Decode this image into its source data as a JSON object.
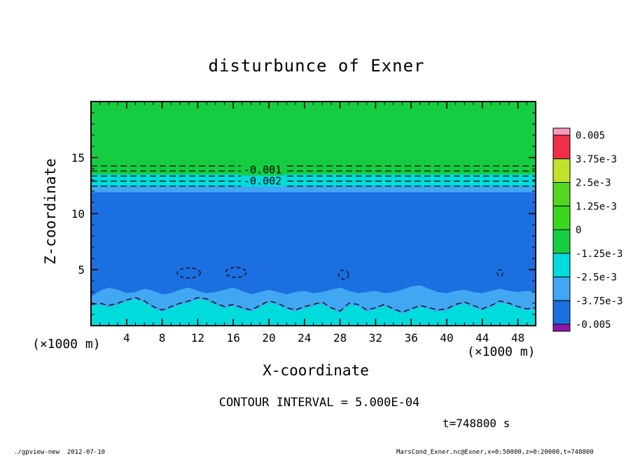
{
  "annotations": {
    "contour_interval": "CONTOUR INTERVAL = 5.000E-04",
    "time": "t=748800 s"
  },
  "footer": {
    "left": "./gpview-new  2012-07-10",
    "right": "MarsCond_Exner.nc@Exner,x=0:50000,z=0:20000,t=748800"
  },
  "chart_data": {
    "type": "heatmap",
    "subtype": "filled-contour",
    "title": "disturbunce of Exner",
    "xlabel": "X-coordinate",
    "ylabel": "Z-coordinate",
    "axis_unit_label": "(×1000 m)",
    "xlim": [
      0,
      50
    ],
    "ylim": [
      0,
      20
    ],
    "x_major_ticks": [
      4,
      8,
      12,
      16,
      20,
      24,
      28,
      32,
      36,
      40,
      44,
      48
    ],
    "x_minor_step": 1,
    "y_major_ticks": [
      5,
      10,
      15
    ],
    "y_minor_step": 1,
    "contour_interval_value": "5.000E-04",
    "colorbar": {
      "tick_labels": [
        "0.005",
        "3.75e-3",
        "2.5e-3",
        "1.25e-3",
        "0",
        "-1.25e-3",
        "-2.5e-3",
        "-3.75e-3",
        "-0.005"
      ],
      "colors": [
        "#f79ab8",
        "#ef2f49",
        "#bfe32a",
        "#55d522",
        "#3bd71f",
        "#16cd42",
        "#00dcdc",
        "#41a7f2",
        "#1b6fe0",
        "#8d18a8"
      ]
    },
    "regions": {
      "green_top": {
        "color": "#16cd42",
        "z_from": 20,
        "z_to": 13.5
      },
      "cyan_band": {
        "color": "#00dcdc",
        "z_from": 13.5,
        "z_to": 12.45
      },
      "lightblue_band": {
        "color": "#41a7f2",
        "z_from": 12.45,
        "z_to": 11.9
      },
      "blue_main": {
        "color": "#1b6fe0",
        "z_from": 11.9,
        "z_to": 0
      },
      "bottom_lightblue": {
        "color": "#41a7f2",
        "boundary": [
          [
            0,
            2.6
          ],
          [
            1,
            3.1
          ],
          [
            2,
            3.4
          ],
          [
            3,
            3.2
          ],
          [
            4,
            2.9
          ],
          [
            5,
            3.0
          ],
          [
            6,
            3.3
          ],
          [
            7,
            3.1
          ],
          [
            8,
            2.8
          ],
          [
            9,
            2.9
          ],
          [
            10,
            3.2
          ],
          [
            11,
            3.4
          ],
          [
            12,
            3.1
          ],
          [
            13,
            2.9
          ],
          [
            14,
            3.0
          ],
          [
            15,
            3.2
          ],
          [
            16,
            3.4
          ],
          [
            17,
            3.1
          ],
          [
            18,
            2.8
          ],
          [
            19,
            3.0
          ],
          [
            20,
            3.2
          ],
          [
            21,
            3.0
          ],
          [
            22,
            2.8
          ],
          [
            23,
            3.0
          ],
          [
            24,
            3.1
          ],
          [
            25,
            2.9
          ],
          [
            26,
            3.0
          ],
          [
            27,
            3.2
          ],
          [
            28,
            3.4
          ],
          [
            29,
            3.1
          ],
          [
            30,
            2.9
          ],
          [
            31,
            3.0
          ],
          [
            32,
            3.1
          ],
          [
            33,
            2.9
          ],
          [
            34,
            3.0
          ],
          [
            35,
            3.2
          ],
          [
            36,
            3.5
          ],
          [
            37,
            3.6
          ],
          [
            38,
            3.3
          ],
          [
            39,
            3.0
          ],
          [
            40,
            2.9
          ],
          [
            41,
            3.1
          ],
          [
            42,
            3.2
          ],
          [
            43,
            3.0
          ],
          [
            44,
            2.9
          ],
          [
            45,
            3.1
          ],
          [
            46,
            3.3
          ],
          [
            47,
            3.1
          ],
          [
            48,
            3.0
          ],
          [
            49,
            3.1
          ],
          [
            50,
            3.0
          ]
        ]
      },
      "bottom_cyan": {
        "color": "#00dcdc",
        "boundary": [
          [
            0,
            1.75
          ],
          [
            1,
            1.85
          ],
          [
            2,
            1.65
          ],
          [
            3,
            1.85
          ],
          [
            4,
            2.15
          ],
          [
            5,
            2.35
          ],
          [
            6,
            2.05
          ],
          [
            7,
            1.55
          ],
          [
            8,
            1.25
          ],
          [
            9,
            1.55
          ],
          [
            10,
            1.85
          ],
          [
            11,
            2.05
          ],
          [
            12,
            2.35
          ],
          [
            13,
            2.25
          ],
          [
            14,
            1.85
          ],
          [
            15,
            1.55
          ],
          [
            16,
            1.75
          ],
          [
            17,
            1.45
          ],
          [
            18,
            1.25
          ],
          [
            19,
            1.65
          ],
          [
            20,
            2.05
          ],
          [
            21,
            1.85
          ],
          [
            22,
            1.45
          ],
          [
            23,
            1.25
          ],
          [
            24,
            1.55
          ],
          [
            25,
            1.75
          ],
          [
            26,
            1.95
          ],
          [
            27,
            1.45
          ],
          [
            28,
            1.15
          ],
          [
            29,
            1.85
          ],
          [
            30,
            1.75
          ],
          [
            31,
            1.25
          ],
          [
            32,
            1.45
          ],
          [
            33,
            1.75
          ],
          [
            34,
            1.35
          ],
          [
            35,
            1.05
          ],
          [
            36,
            1.35
          ],
          [
            37,
            1.65
          ],
          [
            38,
            1.45
          ],
          [
            39,
            1.25
          ],
          [
            40,
            1.35
          ],
          [
            41,
            1.75
          ],
          [
            42,
            1.95
          ],
          [
            43,
            1.65
          ],
          [
            44,
            1.35
          ],
          [
            45,
            1.65
          ],
          [
            46,
            2.05
          ],
          [
            47,
            1.85
          ],
          [
            48,
            1.55
          ],
          [
            49,
            1.35
          ],
          [
            50,
            1.45
          ]
        ]
      }
    },
    "dashed_levels_z": [
      14.25,
      13.8,
      13.35,
      12.9,
      12.45
    ],
    "contour_labels": [
      {
        "text": "-0.001",
        "x": 19.3,
        "z": 13.9,
        "bg": "#16cd42"
      },
      {
        "text": "-0.002",
        "x": 19.3,
        "z": 12.9,
        "bg": "#00dcdc"
      }
    ],
    "surface_contour": [
      [
        0,
        1.9
      ],
      [
        1,
        2.0
      ],
      [
        2,
        1.8
      ],
      [
        3,
        2.0
      ],
      [
        4,
        2.3
      ],
      [
        5,
        2.5
      ],
      [
        6,
        2.2
      ],
      [
        7,
        1.7
      ],
      [
        8,
        1.4
      ],
      [
        9,
        1.7
      ],
      [
        10,
        2.0
      ],
      [
        11,
        2.2
      ],
      [
        12,
        2.5
      ],
      [
        13,
        2.4
      ],
      [
        14,
        2.0
      ],
      [
        15,
        1.7
      ],
      [
        16,
        1.9
      ],
      [
        17,
        1.6
      ],
      [
        18,
        1.4
      ],
      [
        19,
        1.8
      ],
      [
        20,
        2.2
      ],
      [
        21,
        2.0
      ],
      [
        22,
        1.6
      ],
      [
        23,
        1.4
      ],
      [
        24,
        1.7
      ],
      [
        25,
        1.9
      ],
      [
        26,
        2.1
      ],
      [
        27,
        1.6
      ],
      [
        28,
        1.3
      ],
      [
        29,
        2.0
      ],
      [
        30,
        1.9
      ],
      [
        31,
        1.4
      ],
      [
        32,
        1.6
      ],
      [
        33,
        1.9
      ],
      [
        34,
        1.5
      ],
      [
        35,
        1.2
      ],
      [
        36,
        1.5
      ],
      [
        37,
        1.8
      ],
      [
        38,
        1.6
      ],
      [
        39,
        1.4
      ],
      [
        40,
        1.5
      ],
      [
        41,
        1.9
      ],
      [
        42,
        2.1
      ],
      [
        43,
        1.8
      ],
      [
        44,
        1.5
      ],
      [
        45,
        1.8
      ],
      [
        46,
        2.2
      ],
      [
        47,
        2.0
      ],
      [
        48,
        1.7
      ],
      [
        49,
        1.5
      ],
      [
        50,
        1.6
      ]
    ],
    "closed_contours": [
      {
        "cx": 11.0,
        "cz": 4.7,
        "rx": 1.3,
        "rz": 0.45
      },
      {
        "cx": 16.3,
        "cz": 4.75,
        "rx": 1.15,
        "rz": 0.45
      },
      {
        "cx": 28.4,
        "cz": 4.55,
        "rx": 0.55,
        "rz": 0.4
      },
      {
        "cx": 46.0,
        "cz": 4.7,
        "rx": 0.3,
        "rz": 0.3
      }
    ]
  }
}
